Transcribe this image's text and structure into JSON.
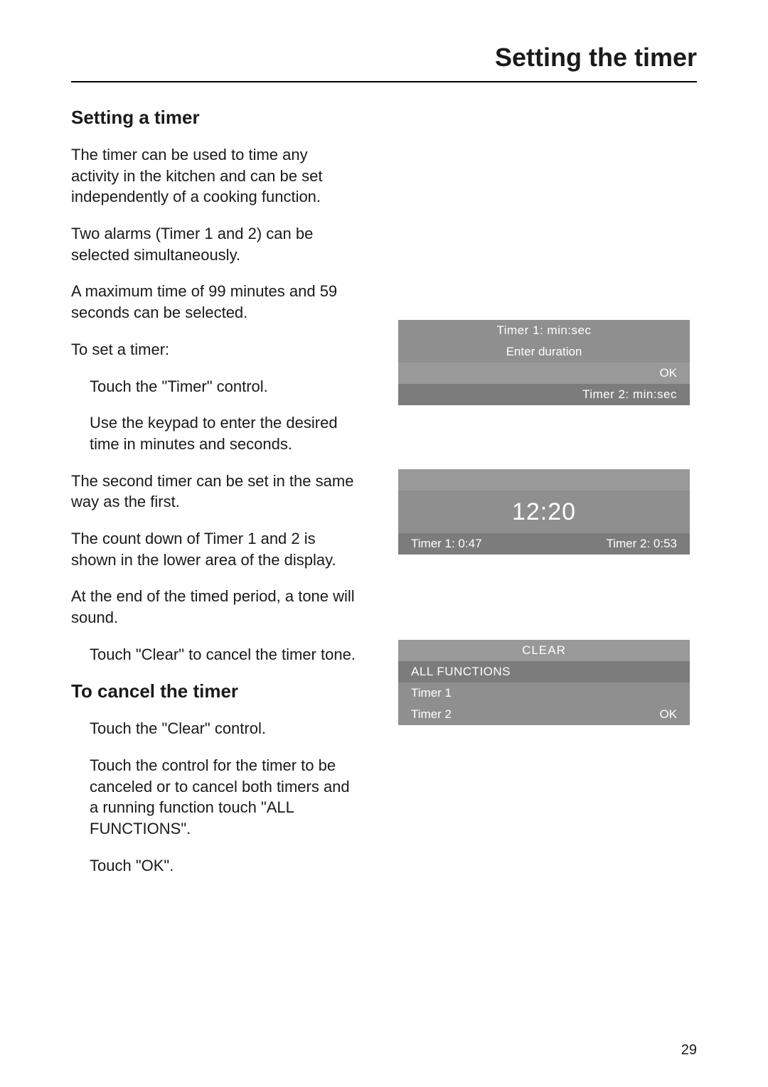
{
  "page": {
    "title": "Setting the timer",
    "number": "29"
  },
  "left": {
    "h1": "Setting a timer",
    "p1": "The timer can be used to time any activity in the kitchen and can be set independently of a cooking function.",
    "p2": "Two alarms (Timer 1 and 2) can be selected simultaneously.",
    "p3": "A maximum time of 99 minutes and 59 seconds can be selected.",
    "p4": "To set a timer:",
    "p5": "Touch the \"Timer\" control.",
    "p6": "Use the keypad to enter the desired time in minutes and seconds.",
    "p7": "The second timer can be set in the same way as the first.",
    "p8": "The count down of Timer 1 and 2 is shown in the lower area of the display.",
    "p9": "At the end of the timed period, a tone will sound.",
    "p10": "Touch \"Clear\" to cancel the timer tone.",
    "h2": "To cancel the timer",
    "p11": "Touch the \"Clear\" control.",
    "p12": "Touch the control for the timer to be canceled or to cancel both timers and a running function touch \"ALL FUNCTIONS\".",
    "p13": "Touch \"OK\"."
  },
  "display1": {
    "line1": "Timer 1: min:sec",
    "line2": "Enter duration",
    "ok": "OK",
    "footer": "Timer 2: min:sec",
    "colors": {
      "main_bg": "#8f8f8f",
      "ok_bg": "#999999",
      "footer_bg": "#7c7c7c",
      "text": "#ffffff"
    }
  },
  "display2": {
    "time": "12:20",
    "timer1": "Timer 1: 0:47",
    "timer2": "Timer 2: 0:53",
    "colors": {
      "top_bg": "#999999",
      "time_bg": "#8f8f8f",
      "foot_bg": "#7c7c7c",
      "text": "#ffffff"
    }
  },
  "display3": {
    "header": "CLEAR",
    "row1": "ALL FUNCTIONS",
    "row2": "Timer 1",
    "row3": "Timer 2",
    "ok": "OK",
    "colors": {
      "header_bg": "#999999",
      "all_bg": "#7c7c7c",
      "row_bg": "#8f8f8f",
      "text": "#ffffff"
    }
  }
}
